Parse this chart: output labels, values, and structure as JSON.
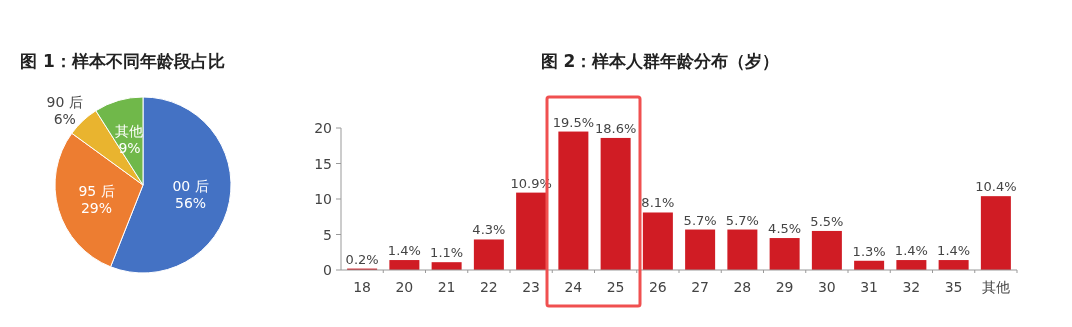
{
  "chart_data": [
    {
      "type": "pie",
      "title": "图 1：样本不同年龄段占比",
      "categories": [
        "00 后",
        "95 后",
        "90 后",
        "其他"
      ],
      "values": [
        56,
        29,
        6,
        9
      ],
      "colors": [
        "#4472c4",
        "#ed7d31",
        "#e9b42f",
        "#70b84a"
      ],
      "value_labels": [
        "56%",
        "29%",
        "6%",
        "9%"
      ]
    },
    {
      "type": "bar",
      "title": "图 2：样本人群年龄分布（岁）",
      "categories": [
        "18",
        "20",
        "21",
        "22",
        "23",
        "24",
        "25",
        "26",
        "27",
        "28",
        "29",
        "30",
        "31",
        "32",
        "35",
        "其他"
      ],
      "values": [
        0.2,
        1.4,
        1.1,
        4.3,
        10.9,
        19.5,
        18.6,
        8.1,
        5.7,
        5.7,
        4.5,
        5.5,
        1.3,
        1.4,
        1.4,
        10.4
      ],
      "value_labels": [
        "0.2%",
        "1.4%",
        "1.1%",
        "4.3%",
        "10.9%",
        "19.5%",
        "18.6%",
        "8.1%",
        "5.7%",
        "5.7%",
        "4.5%",
        "5.5%",
        "1.3%",
        "1.4%",
        "1.4%",
        "10.4%"
      ],
      "color": "#d01c24",
      "ylim": [
        0,
        20
      ],
      "yticks": [
        0,
        5,
        10,
        15,
        20
      ]
    }
  ]
}
